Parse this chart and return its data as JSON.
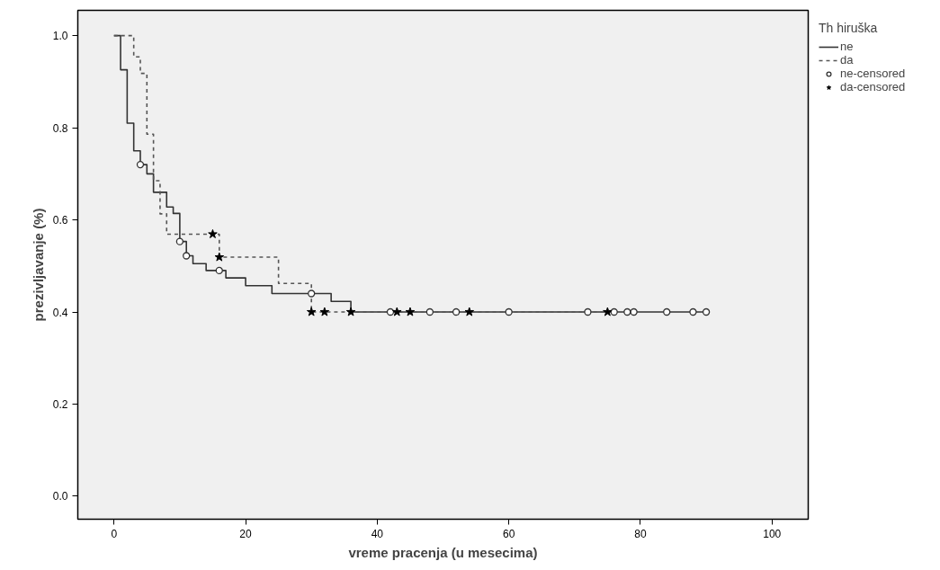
{
  "chart_data": {
    "type": "step",
    "xlabel": "vreme pracenja (u mesecima)",
    "ylabel": "prezivljavanje (%)",
    "legend_title": "Th hiruška",
    "legend": "right",
    "grid": false,
    "xlim": [
      -5.5,
      105.5
    ],
    "ylim": [
      -0.05,
      1.055
    ],
    "xticks": [
      0,
      20,
      40,
      60,
      80,
      100
    ],
    "yticks": [
      {
        "value": 0,
        "label": "0.0"
      },
      0.2,
      0.4,
      0.6,
      0.8,
      {
        "value": 1,
        "label": "1.0"
      }
    ],
    "series": [
      {
        "name": "ne",
        "color": "#333333",
        "line_style": "solid",
        "x": [
          0,
          1,
          2,
          3,
          4,
          5,
          6,
          8,
          9,
          10,
          11,
          12,
          14,
          17,
          20,
          24,
          33,
          36,
          90
        ],
        "values": [
          1,
          0.926,
          0.81,
          0.75,
          0.72,
          0.7,
          0.66,
          0.628,
          0.614,
          0.553,
          0.522,
          0.505,
          0.49,
          0.474,
          0.457,
          0.44,
          0.423,
          0.4,
          0.4
        ]
      },
      {
        "name": "da",
        "color": "#555555",
        "line_style": "dashed",
        "x": [
          0,
          3,
          4,
          5,
          6,
          7,
          8,
          16,
          25,
          30,
          75
        ],
        "values": [
          1,
          0.954,
          0.918,
          0.786,
          0.685,
          0.613,
          0.569,
          0.519,
          0.462,
          0.4,
          0.4
        ]
      },
      {
        "name": "ne-censored",
        "type": "scatter",
        "marker": "circle",
        "color": "#333333",
        "x": [
          4,
          10,
          11,
          16,
          30,
          42,
          48,
          52,
          60,
          72,
          76,
          78,
          79,
          84,
          88,
          90
        ],
        "values": [
          0.72,
          0.553,
          0.522,
          0.49,
          0.44,
          0.4,
          0.4,
          0.4,
          0.4,
          0.4,
          0.4,
          0.4,
          0.4,
          0.4,
          0.4,
          0.4
        ]
      },
      {
        "name": "da-censored",
        "type": "scatter",
        "marker": "star",
        "color": "#000000",
        "x": [
          15,
          16,
          30,
          32,
          36,
          43,
          45,
          54,
          75
        ],
        "values": [
          0.569,
          0.519,
          0.4,
          0.4,
          0.4,
          0.4,
          0.4,
          0.4,
          0.4
        ]
      }
    ]
  }
}
